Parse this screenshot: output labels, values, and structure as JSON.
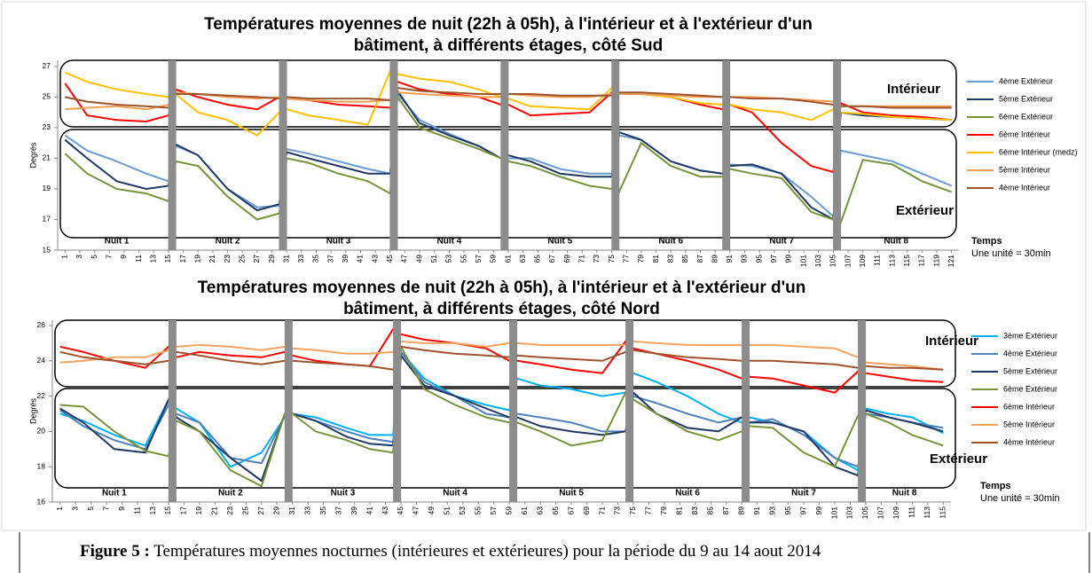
{
  "chart_data": [
    {
      "type": "line",
      "title": [
        "Températures moyennes de nuit (22h à 05h), à l'intérieur et à l'extérieur  d'un",
        "bâtiment, à différents étages, côté Sud"
      ],
      "ylabel": "Degrés",
      "xlabel": "Temps",
      "xlabel_note": "Une unité = 30min",
      "zones": [
        "Intérieur",
        "Extérieur"
      ],
      "xlim": [
        0,
        122
      ],
      "ylim": [
        15,
        27.4
      ],
      "yticks": [
        15,
        17,
        19,
        21,
        23,
        25,
        27
      ],
      "xticks": [
        1,
        3,
        5,
        7,
        9,
        11,
        13,
        15,
        17,
        19,
        21,
        23,
        25,
        27,
        29,
        31,
        33,
        35,
        37,
        39,
        41,
        43,
        45,
        47,
        49,
        51,
        53,
        55,
        57,
        59,
        61,
        63,
        65,
        67,
        69,
        71,
        73,
        75,
        77,
        79,
        81,
        83,
        85,
        87,
        89,
        91,
        93,
        95,
        97,
        99,
        101,
        103,
        105,
        107,
        109,
        111,
        113,
        115,
        117,
        119,
        121
      ],
      "nights": [
        {
          "label": "Nuit 1",
          "x": [
            1,
            15
          ]
        },
        {
          "label": "Nuit 2",
          "x": [
            16,
            30
          ]
        },
        {
          "label": "Nuit 3",
          "x": [
            31,
            45
          ]
        },
        {
          "label": "Nuit 4",
          "x": [
            46,
            60
          ]
        },
        {
          "label": "Nuit 5",
          "x": [
            61,
            75
          ]
        },
        {
          "label": "Nuit 6",
          "x": [
            76,
            90
          ]
        },
        {
          "label": "Nuit 7",
          "x": [
            91,
            105
          ]
        },
        {
          "label": "Nuit 8",
          "x": [
            106,
            121
          ]
        }
      ],
      "x": [
        1,
        4,
        8,
        12,
        15,
        16,
        19,
        23,
        27,
        30,
        31,
        34,
        38,
        42,
        45,
        46,
        49,
        53,
        57,
        60,
        61,
        64,
        68,
        72,
        75,
        76,
        79,
        83,
        87,
        90,
        91,
        94,
        98,
        102,
        105,
        106,
        109,
        113,
        117,
        121
      ],
      "series": [
        {
          "name": "4ème Extérieur",
          "color": "#6a9bd1",
          "values": [
            22.5,
            21.5,
            20.8,
            20,
            19.5,
            21.8,
            21.2,
            19,
            17.8,
            17.9,
            21.6,
            21.3,
            20.8,
            20.3,
            20,
            25.2,
            23.5,
            22.6,
            21.8,
            21,
            21,
            21,
            20.3,
            20,
            20,
            22.5,
            22.2,
            20.8,
            20.2,
            20,
            20.6,
            20.5,
            20,
            18.5,
            17.2,
            21.5,
            21.2,
            20.8,
            20,
            19.2
          ]
        },
        {
          "name": "5ème Extérieur",
          "color": "#1f3864",
          "values": [
            22.2,
            21,
            19.5,
            19,
            19.2,
            21.9,
            21.2,
            19,
            17.6,
            18,
            21.4,
            21,
            20.5,
            20,
            20,
            25.4,
            23.3,
            22.5,
            21.8,
            21,
            21.2,
            20.8,
            20,
            19.8,
            19.8,
            22.7,
            22.2,
            20.8,
            20.2,
            20,
            20.5,
            20.6,
            20,
            17.8,
            17,
            24,
            23.8,
            23.7,
            23.6,
            23.5
          ]
        },
        {
          "name": "6ème Extérieur",
          "color": "#77933c",
          "values": [
            21.3,
            20,
            19,
            18.7,
            18.2,
            20.8,
            20.5,
            18.5,
            17,
            17.4,
            21,
            20.7,
            20,
            19.5,
            18.7,
            25,
            23,
            22.3,
            21.6,
            21,
            20.8,
            20.5,
            19.8,
            19.2,
            19,
            18.8,
            22,
            20.5,
            19.8,
            19.8,
            20.3,
            20,
            19.7,
            17.5,
            17,
            16.8,
            20.9,
            20.6,
            19.5,
            18.8
          ]
        },
        {
          "name": "6ème Intérieur",
          "color": "#ff0000",
          "values": [
            25.9,
            23.8,
            23.5,
            23.4,
            23.8,
            25.5,
            25,
            24.5,
            24.2,
            25,
            24.9,
            24.8,
            24.5,
            24.4,
            24.3,
            26,
            25.5,
            25.2,
            25,
            24.5,
            24.5,
            23.8,
            23.9,
            24,
            25.3,
            25.3,
            25.2,
            25,
            24.5,
            24.2,
            24.5,
            24,
            22,
            20.5,
            20.1,
            24.6,
            24,
            23.8,
            23.7,
            23.5
          ]
        },
        {
          "name": "6ème Intérieur (medz)",
          "color": "#ffc000",
          "values": [
            26.6,
            26,
            25.5,
            25.2,
            25,
            25.2,
            24,
            23.5,
            22.5,
            24,
            24.2,
            23.8,
            23.5,
            23.2,
            26.7,
            26.5,
            26.2,
            26,
            25.5,
            25,
            24.9,
            24.4,
            24.3,
            24.2,
            25.6,
            25.3,
            25.2,
            25,
            24.6,
            24.5,
            24.5,
            24.2,
            24,
            23.5,
            24.2,
            24,
            23.9,
            23.7,
            23.6,
            23.5
          ]
        },
        {
          "name": "5ème Intérieur",
          "color": "#f0a050",
          "values": [
            24.2,
            24.3,
            24.4,
            24.2,
            24.5,
            25.3,
            25.2,
            25,
            24.9,
            25,
            24.9,
            24.8,
            24.7,
            24.7,
            24.8,
            25.3,
            25.2,
            25.1,
            25,
            25,
            25.2,
            25.1,
            25,
            25,
            25.2,
            25.2,
            25.2,
            25.1,
            25,
            25,
            25,
            25,
            24.9,
            24.8,
            24.7,
            24.4,
            24.4,
            24.4,
            24.4,
            24.4
          ]
        },
        {
          "name": "4ème Intérieur",
          "color": "#a0522d",
          "values": [
            25,
            24.7,
            24.5,
            24.4,
            24.3,
            25.2,
            25.2,
            25.1,
            25,
            24.9,
            25,
            24.9,
            24.9,
            24.9,
            24.8,
            25.6,
            25.4,
            25.3,
            25.2,
            25.2,
            25.2,
            25.2,
            25.1,
            25.1,
            25.1,
            25.3,
            25.3,
            25.2,
            25.1,
            25,
            25,
            24.9,
            24.9,
            24.7,
            24.5,
            24.4,
            24.4,
            24.3,
            24.3,
            24.3
          ]
        }
      ]
    },
    {
      "type": "line",
      "title": [
        "Températures moyennes de nuit (22h à 05h), à l'intérieur et à l'extérieur  d'un",
        "bâtiment, à différents étages, côté Nord"
      ],
      "ylabel": "Degrés",
      "xlabel": "Temps",
      "xlabel_note": "Une unité = 30min",
      "zones": [
        "Intérieur",
        "Extérieur"
      ],
      "xlim": [
        0,
        116
      ],
      "ylim": [
        16,
        26.3
      ],
      "yticks": [
        16,
        18,
        20,
        22,
        24,
        26
      ],
      "xticks": [
        1,
        3,
        5,
        7,
        9,
        11,
        13,
        15,
        17,
        19,
        21,
        23,
        25,
        27,
        29,
        31,
        33,
        35,
        37,
        39,
        41,
        43,
        45,
        47,
        49,
        51,
        53,
        55,
        57,
        59,
        61,
        63,
        65,
        67,
        69,
        71,
        73,
        75,
        77,
        79,
        81,
        83,
        85,
        87,
        89,
        91,
        93,
        95,
        97,
        99,
        101,
        103,
        105,
        107,
        109,
        111,
        113,
        115
      ],
      "nights": [
        {
          "label": "Nuit 1",
          "x": [
            1,
            15
          ]
        },
        {
          "label": "Nuit 2",
          "x": [
            16,
            30
          ]
        },
        {
          "label": "Nuit 3",
          "x": [
            31,
            44
          ]
        },
        {
          "label": "Nuit 4",
          "x": [
            45,
            59
          ]
        },
        {
          "label": "Nuit 5",
          "x": [
            60,
            74
          ]
        },
        {
          "label": "Nuit 6",
          "x": [
            75,
            89
          ]
        },
        {
          "label": "Nuit 7",
          "x": [
            90,
            104
          ]
        },
        {
          "label": "Nuit 8",
          "x": [
            105,
            115
          ]
        }
      ],
      "x": [
        1,
        4,
        8,
        12,
        15,
        16,
        19,
        23,
        27,
        30,
        31,
        34,
        38,
        41,
        44,
        45,
        48,
        52,
        56,
        59,
        60,
        63,
        67,
        71,
        74,
        75,
        78,
        82,
        86,
        89,
        90,
        93,
        97,
        101,
        104,
        105,
        108,
        111,
        115
      ],
      "series": [
        {
          "name": "3ème Extérieur",
          "color": "#00b0f0",
          "values": [
            21,
            20.6,
            19.8,
            19.2,
            21.8,
            21.3,
            20.5,
            18,
            18.8,
            20.8,
            21,
            20.8,
            20.2,
            19.8,
            19.8,
            24.5,
            23,
            22,
            21.5,
            21.2,
            23,
            22.6,
            22.4,
            22,
            22.2,
            23.3,
            22.8,
            22,
            21,
            20.5,
            20.8,
            20.5,
            20,
            18.5,
            17.8,
            21.3,
            21,
            20.8,
            19.9
          ]
        },
        {
          "name": "4ème Extérieur",
          "color": "#4f81bd",
          "values": [
            21.2,
            20.3,
            19.5,
            19,
            21.5,
            21,
            20.5,
            18.5,
            18.2,
            20.9,
            21,
            20.6,
            20,
            19.6,
            19.4,
            24.5,
            22.8,
            22,
            21,
            20.8,
            21,
            20.8,
            20.5,
            20,
            20,
            22,
            21.6,
            21,
            20.5,
            20.8,
            20.5,
            20.7,
            19.8,
            18.5,
            18,
            21,
            20.8,
            20.5,
            20.2
          ]
        },
        {
          "name": "5ème Extérieur",
          "color": "#1f3864",
          "values": [
            21.3,
            20.5,
            19,
            18.8,
            21.8,
            20.8,
            20,
            18.5,
            17.2,
            21,
            21,
            20.6,
            19.7,
            19.3,
            19.2,
            24.3,
            22.6,
            22,
            21.3,
            20.8,
            20.8,
            20.3,
            20,
            19.8,
            20,
            22.2,
            21,
            20.2,
            20,
            20.8,
            20.5,
            20.5,
            20,
            18,
            17.5,
            21.2,
            20.8,
            20.5,
            20
          ]
        },
        {
          "name": "6ème Extérieur",
          "color": "#77933c",
          "values": [
            21.5,
            21.4,
            20,
            18.9,
            18.6,
            20.6,
            20,
            17.8,
            16.9,
            21,
            21,
            20,
            19.5,
            19,
            18.8,
            24.8,
            22.4,
            21.5,
            20.8,
            20.5,
            20.5,
            20,
            19.2,
            19.5,
            22.2,
            21.8,
            21,
            20,
            19.5,
            20,
            20.3,
            20.2,
            18.8,
            18,
            20.9,
            21,
            20.5,
            19.8,
            19.2
          ]
        },
        {
          "name": "6ème Intérieur",
          "color": "#ff0000",
          "values": [
            24.8,
            24.5,
            24,
            23.6,
            24.8,
            24.2,
            24.5,
            24.3,
            24.2,
            24.5,
            24.3,
            24,
            23.8,
            23.7,
            25.8,
            25.5,
            25.2,
            25,
            24.7,
            24,
            24,
            23.8,
            23.5,
            23.3,
            25.1,
            24.7,
            24.4,
            24,
            23.5,
            23,
            23.1,
            23,
            22.6,
            22.2,
            23.4,
            23.3,
            23.1,
            22.9,
            22.8
          ]
        },
        {
          "name": "5ème Intérieur",
          "color": "#f4a460",
          "values": [
            23.9,
            24,
            24.2,
            24.2,
            24.6,
            24.8,
            24.9,
            24.8,
            24.6,
            24.8,
            24.7,
            24.6,
            24.4,
            24.4,
            24.5,
            25.1,
            25,
            25,
            24.8,
            25,
            25,
            24.9,
            24.9,
            24.9,
            24.9,
            25.1,
            25,
            24.9,
            24.9,
            24.9,
            24.9,
            24.9,
            24.8,
            24.7,
            24.2,
            23.9,
            23.8,
            23.7,
            23.5
          ]
        },
        {
          "name": "4ème Intérieur",
          "color": "#a0522d",
          "values": [
            24.5,
            24.2,
            24,
            23.8,
            24,
            24.5,
            24.3,
            24,
            23.8,
            24,
            24,
            23.9,
            23.8,
            23.7,
            23.5,
            24.8,
            24.6,
            24.4,
            24.3,
            24.2,
            24.3,
            24.2,
            24.1,
            24,
            24.5,
            24.6,
            24.4,
            24.2,
            24.1,
            24,
            24,
            24,
            23.9,
            23.8,
            23.6,
            23.7,
            23.6,
            23.6,
            23.5
          ]
        }
      ]
    }
  ],
  "caption": {
    "label": "Figure 5 :",
    "text": " Températures moyennes nocturnes (intérieures et extérieures) pour la période du 9 au 14 aout 2014"
  }
}
